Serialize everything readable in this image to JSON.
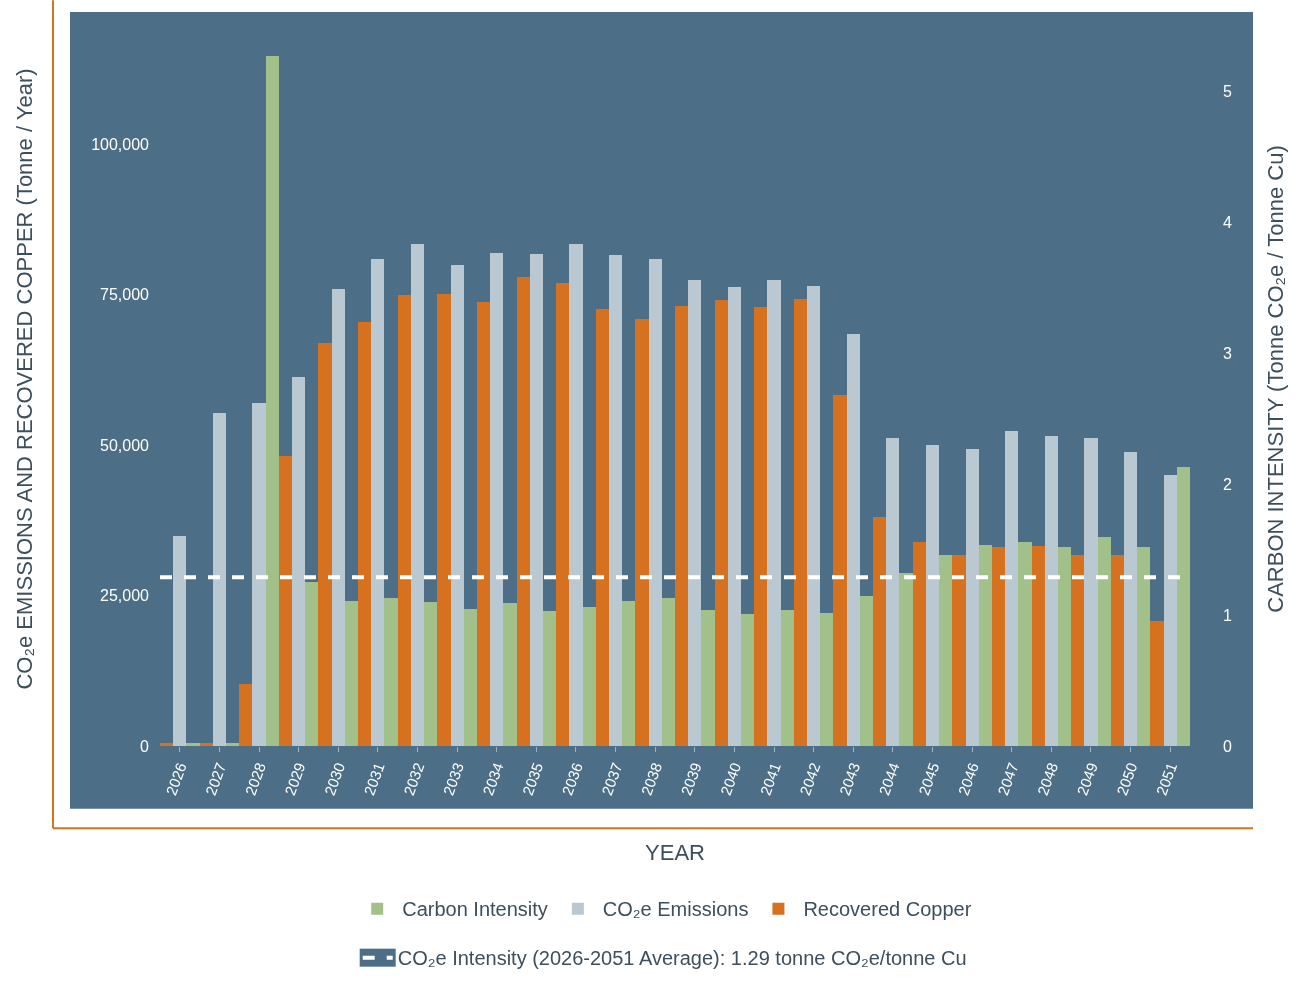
{
  "chart_data": {
    "type": "bar",
    "xlabel": "YEAR",
    "ylabel": "CO₂e EMISSIONS AND RECOVERED COPPER (Tonne / Year)",
    "y2label": "CARBON INTENSITY (Tonne CO₂e / Tonne Cu)",
    "categories": [
      "2026",
      "2027",
      "2028",
      "2029",
      "2030",
      "2031",
      "2032",
      "2033",
      "2034",
      "2035",
      "2036",
      "2037",
      "2038",
      "2039",
      "2040",
      "2041",
      "2042",
      "2043",
      "2044",
      "2045",
      "2046",
      "2047",
      "2048",
      "2049",
      "2050",
      "2051"
    ],
    "series": [
      {
        "name": "Recovered Copper",
        "color": "#d5711f",
        "values": [
          500,
          500,
          10300,
          48200,
          67000,
          70400,
          75000,
          75100,
          73800,
          77900,
          76900,
          72700,
          70900,
          73200,
          74100,
          73000,
          74300,
          58300,
          38000,
          33900,
          31700,
          33000,
          33300,
          31700,
          31700,
          20700
        ]
      },
      {
        "name": "CO₂e Emissions",
        "color": "#b9c8d1",
        "values": [
          34900,
          55300,
          57000,
          61400,
          75900,
          81000,
          83400,
          80000,
          82000,
          81800,
          83400,
          81600,
          81000,
          77400,
          76300,
          77400,
          76400,
          68400,
          51200,
          50000,
          49400,
          52300,
          51500,
          51200,
          48900,
          45000
        ]
      },
      {
        "name": "Carbon Intensity",
        "color": "#a2c08a",
        "axis": "y2",
        "values": [
          0.02,
          0.02,
          5.27,
          1.25,
          1.11,
          1.13,
          1.1,
          1.05,
          1.09,
          1.03,
          1.06,
          1.11,
          1.13,
          1.04,
          1.01,
          1.04,
          1.02,
          1.15,
          1.32,
          1.46,
          1.54,
          1.56,
          1.52,
          1.6,
          1.52,
          2.13
        ]
      }
    ],
    "ylim": [
      0,
      122000
    ],
    "yticks": [
      0,
      {
        "value": 25000,
        "label": "25,000"
      },
      {
        "value": 50000,
        "label": "50,000"
      },
      {
        "value": 75000,
        "label": "75,000"
      },
      {
        "value": 100000,
        "label": "100,000"
      }
    ],
    "y2lim": [
      0,
      5.61
    ],
    "y2ticks": [
      0,
      1,
      2,
      3,
      4,
      5
    ],
    "ref_lines": [
      {
        "axis": "y2",
        "value": 1.29,
        "label": "CO₂e Intensity (2026-2051 Average): 1.29 tonne CO₂e/tonne Cu",
        "color": "#ffffff",
        "line_style": "dashed"
      }
    ],
    "grid": false,
    "legend": "bottom"
  }
}
